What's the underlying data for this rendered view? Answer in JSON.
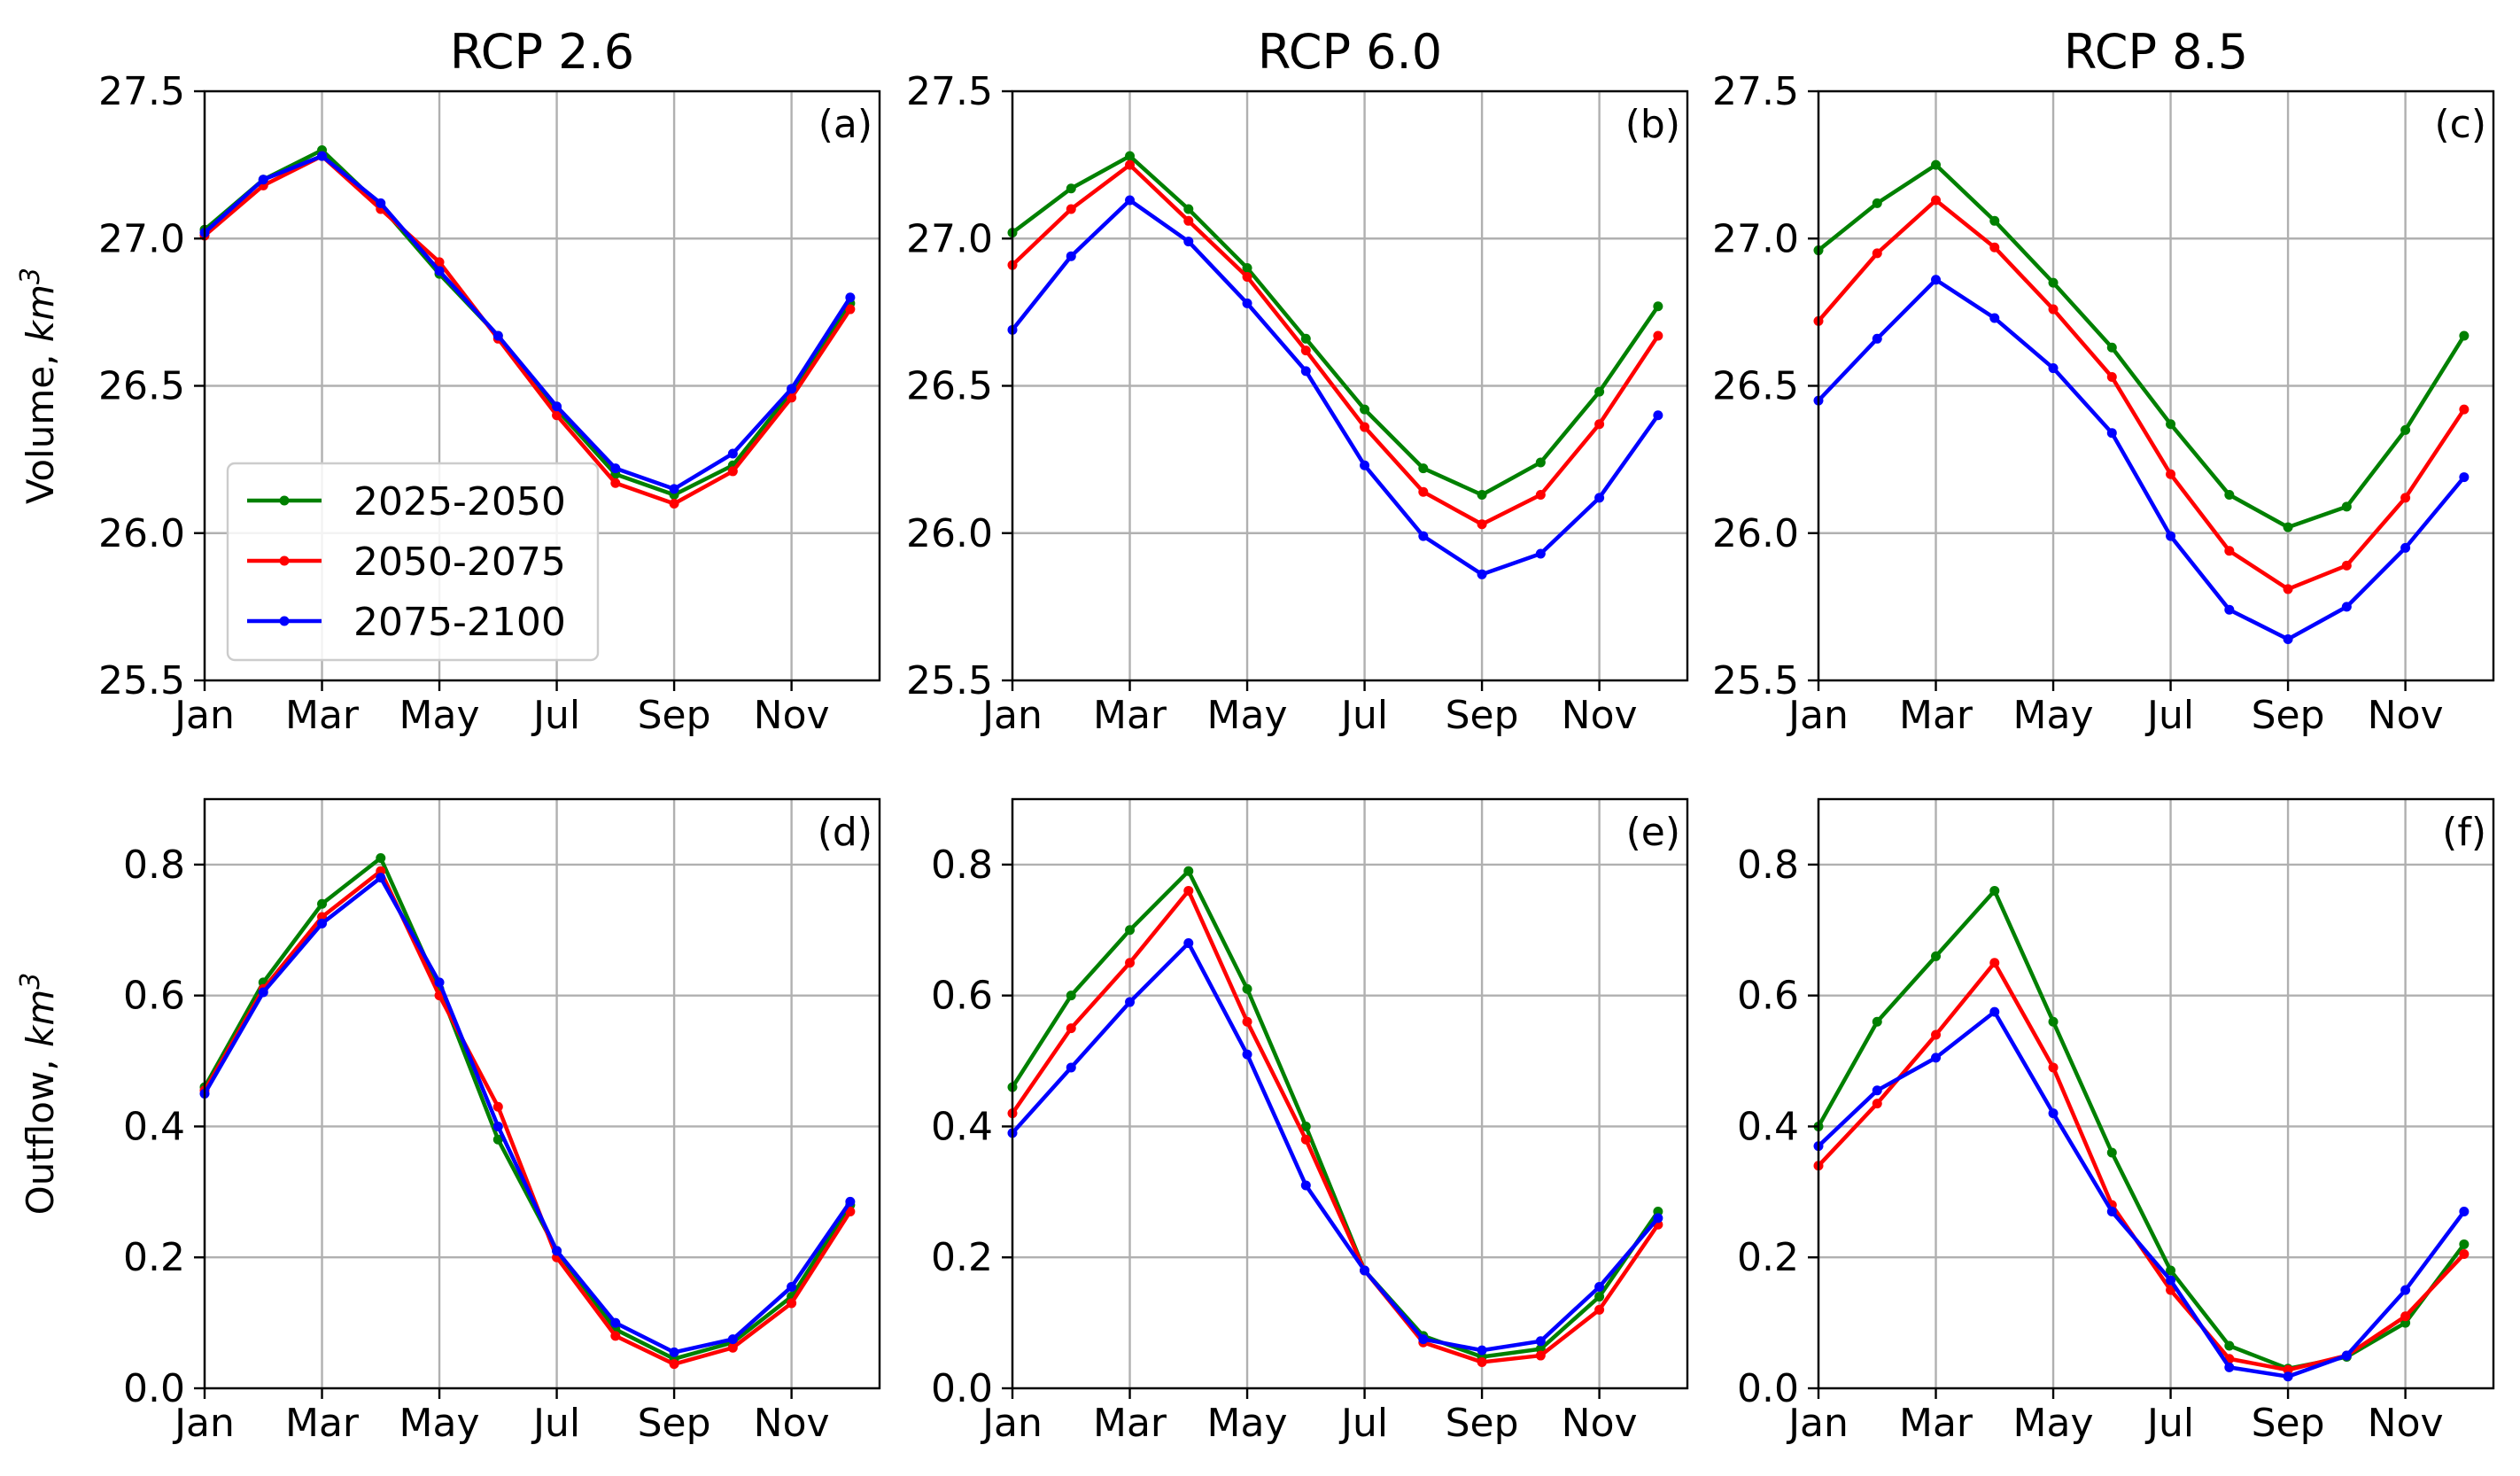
{
  "chart_data": {
    "type": "line",
    "figure_columns": [
      "RCP 2.6",
      "RCP 6.0",
      "RCP 8.5"
    ],
    "x_months": [
      1,
      2,
      3,
      4,
      5,
      6,
      7,
      8,
      9,
      10,
      11,
      12
    ],
    "x_ticks": [
      1,
      3,
      5,
      7,
      9,
      11
    ],
    "x_tick_labels": [
      "Jan",
      "Mar",
      "May",
      "Jul",
      "Sep",
      "Nov"
    ],
    "xlim": [
      1,
      12.5
    ],
    "series_styles": [
      {
        "name": "2025-2050",
        "color": "#008000"
      },
      {
        "name": "2050-2075",
        "color": "#ff0000"
      },
      {
        "name": "2075-2100",
        "color": "#0000ff"
      }
    ],
    "legend": {
      "entries": [
        "2025-2050",
        "2050-2075",
        "2075-2100"
      ],
      "panel": "a",
      "location": "lower-left"
    },
    "rows": [
      {
        "ylabel": "Volume, km",
        "ylabel_superscript": "3",
        "ylim": [
          25.5,
          27.5
        ],
        "y_ticks": [
          25.5,
          26.0,
          26.5,
          27.0,
          27.5
        ],
        "y_tick_labels": [
          "25.5",
          "26.0",
          "26.5",
          "27.0",
          "27.5"
        ]
      },
      {
        "ylabel": "Outflow, km",
        "ylabel_superscript": "3",
        "ylim": [
          0,
          0.9
        ],
        "y_ticks": [
          0.0,
          0.2,
          0.4,
          0.6,
          0.8
        ],
        "y_tick_labels": [
          "0.0",
          "0.2",
          "0.4",
          "0.6",
          "0.8"
        ]
      }
    ],
    "panels": [
      {
        "id": "a",
        "tag": "(a)",
        "title": "RCP 2.6",
        "row": 0,
        "col": 0,
        "series": [
          {
            "name": "2025-2050",
            "values": [
              27.03,
              27.2,
              27.3,
              27.11,
              26.88,
              26.67,
              26.42,
              26.2,
              26.13,
              26.23,
              26.48,
              26.78
            ]
          },
          {
            "name": "2050-2075",
            "values": [
              27.01,
              27.18,
              27.28,
              27.1,
              26.92,
              26.66,
              26.4,
              26.17,
              26.1,
              26.21,
              26.46,
              26.76
            ]
          },
          {
            "name": "2075-2100",
            "values": [
              27.02,
              27.2,
              27.28,
              27.12,
              26.89,
              26.67,
              26.43,
              26.22,
              26.15,
              26.27,
              26.49,
              26.8
            ]
          }
        ]
      },
      {
        "id": "b",
        "tag": "(b)",
        "title": "RCP 6.0",
        "row": 0,
        "col": 1,
        "series": [
          {
            "name": "2025-2050",
            "values": [
              27.02,
              27.17,
              27.28,
              27.1,
              26.9,
              26.66,
              26.42,
              26.22,
              26.13,
              26.24,
              26.48,
              26.77
            ]
          },
          {
            "name": "2050-2075",
            "values": [
              26.91,
              27.1,
              27.25,
              27.06,
              26.87,
              26.62,
              26.36,
              26.14,
              26.03,
              26.13,
              26.37,
              26.67
            ]
          },
          {
            "name": "2075-2100",
            "values": [
              26.69,
              26.94,
              27.13,
              26.99,
              26.78,
              26.55,
              26.23,
              25.99,
              25.86,
              25.93,
              26.12,
              26.4
            ]
          }
        ]
      },
      {
        "id": "c",
        "tag": "(c)",
        "title": "RCP 8.5",
        "row": 0,
        "col": 2,
        "series": [
          {
            "name": "2025-2050",
            "values": [
              26.96,
              27.12,
              27.25,
              27.06,
              26.85,
              26.63,
              26.37,
              26.13,
              26.02,
              26.09,
              26.35,
              26.67
            ]
          },
          {
            "name": "2050-2075",
            "values": [
              26.72,
              26.95,
              27.13,
              26.97,
              26.76,
              26.53,
              26.2,
              25.94,
              25.81,
              25.89,
              26.12,
              26.42
            ]
          },
          {
            "name": "2075-2100",
            "values": [
              26.45,
              26.66,
              26.86,
              26.73,
              26.56,
              26.34,
              25.99,
              25.74,
              25.64,
              25.75,
              25.95,
              26.19
            ]
          }
        ]
      },
      {
        "id": "d",
        "tag": "(d)",
        "title": "",
        "row": 1,
        "col": 0,
        "series": [
          {
            "name": "2025-2050",
            "values": [
              0.46,
              0.62,
              0.74,
              0.81,
              0.61,
              0.38,
              0.21,
              0.09,
              0.045,
              0.07,
              0.14,
              0.28
            ]
          },
          {
            "name": "2050-2075",
            "values": [
              0.455,
              0.61,
              0.72,
              0.79,
              0.6,
              0.43,
              0.2,
              0.08,
              0.037,
              0.062,
              0.13,
              0.27
            ]
          },
          {
            "name": "2075-2100",
            "values": [
              0.45,
              0.605,
              0.71,
              0.78,
              0.62,
              0.4,
              0.21,
              0.1,
              0.055,
              0.075,
              0.155,
              0.285
            ]
          }
        ]
      },
      {
        "id": "e",
        "tag": "(e)",
        "title": "",
        "row": 1,
        "col": 1,
        "series": [
          {
            "name": "2025-2050",
            "values": [
              0.46,
              0.6,
              0.7,
              0.79,
              0.61,
              0.4,
              0.18,
              0.08,
              0.048,
              0.06,
              0.14,
              0.27
            ]
          },
          {
            "name": "2050-2075",
            "values": [
              0.42,
              0.55,
              0.65,
              0.76,
              0.56,
              0.38,
              0.18,
              0.07,
              0.04,
              0.05,
              0.12,
              0.25
            ]
          },
          {
            "name": "2075-2100",
            "values": [
              0.39,
              0.49,
              0.59,
              0.68,
              0.51,
              0.31,
              0.18,
              0.075,
              0.058,
              0.072,
              0.155,
              0.26
            ]
          }
        ]
      },
      {
        "id": "f",
        "tag": "(f)",
        "title": "",
        "row": 1,
        "col": 2,
        "series": [
          {
            "name": "2025-2050",
            "values": [
              0.4,
              0.56,
              0.66,
              0.76,
              0.56,
              0.36,
              0.18,
              0.065,
              0.03,
              0.048,
              0.1,
              0.22
            ]
          },
          {
            "name": "2050-2075",
            "values": [
              0.34,
              0.435,
              0.54,
              0.65,
              0.49,
              0.28,
              0.15,
              0.045,
              0.028,
              0.05,
              0.11,
              0.205
            ]
          },
          {
            "name": "2075-2100",
            "values": [
              0.37,
              0.455,
              0.505,
              0.575,
              0.42,
              0.27,
              0.165,
              0.032,
              0.018,
              0.05,
              0.15,
              0.27
            ]
          }
        ]
      }
    ]
  }
}
